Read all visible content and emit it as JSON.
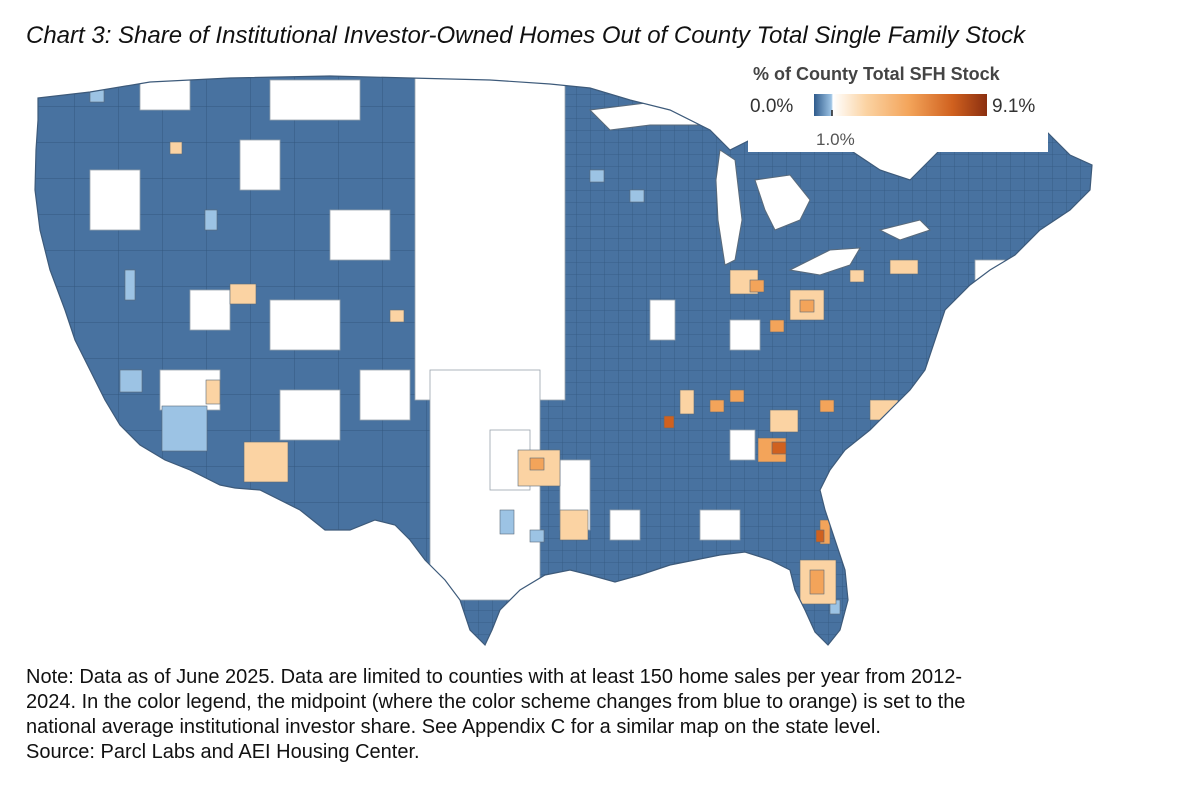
{
  "title": "Chart 3: Share of Institutional Investor-Owned Homes Out of County Total Single Family Stock",
  "legend": {
    "title": "% of County Total SFH Stock",
    "min_label": "0.0%",
    "mid_label": "1.0%",
    "max_label": "9.1%",
    "min_value": 0.0,
    "mid_value": 1.0,
    "max_value": 9.1,
    "colors": {
      "low_blue": "#2f5b8c",
      "mid_blue": "#9cc3e4",
      "white": "#ffffff",
      "light_orange": "#fbd3a3",
      "orange": "#f3a45a",
      "dark_orange": "#d0611f",
      "max_brown": "#8b2f10"
    }
  },
  "map": {
    "type": "choropleth",
    "geography": "US counties (contiguous)",
    "colors": {
      "county_blue": "#4872A0",
      "no_data": "#ffffff",
      "border": "#5a6a7a",
      "light_blue": "#9cc3e4",
      "light_orange": "#fbd3a3",
      "orange": "#f3a45a",
      "dark_orange": "#d0611f"
    }
  },
  "note": {
    "line1": "Note: Data as of June 2025. Data are limited to counties with at least 150 home sales per year from 2012-",
    "line2": "2024. In the color legend, the midpoint (where the color scheme changes from blue to orange) is set to the",
    "line3": "national average institutional investor share. See Appendix C for a similar map on the state level.",
    "line4": "Source: Parcl Labs and AEI Housing Center."
  }
}
